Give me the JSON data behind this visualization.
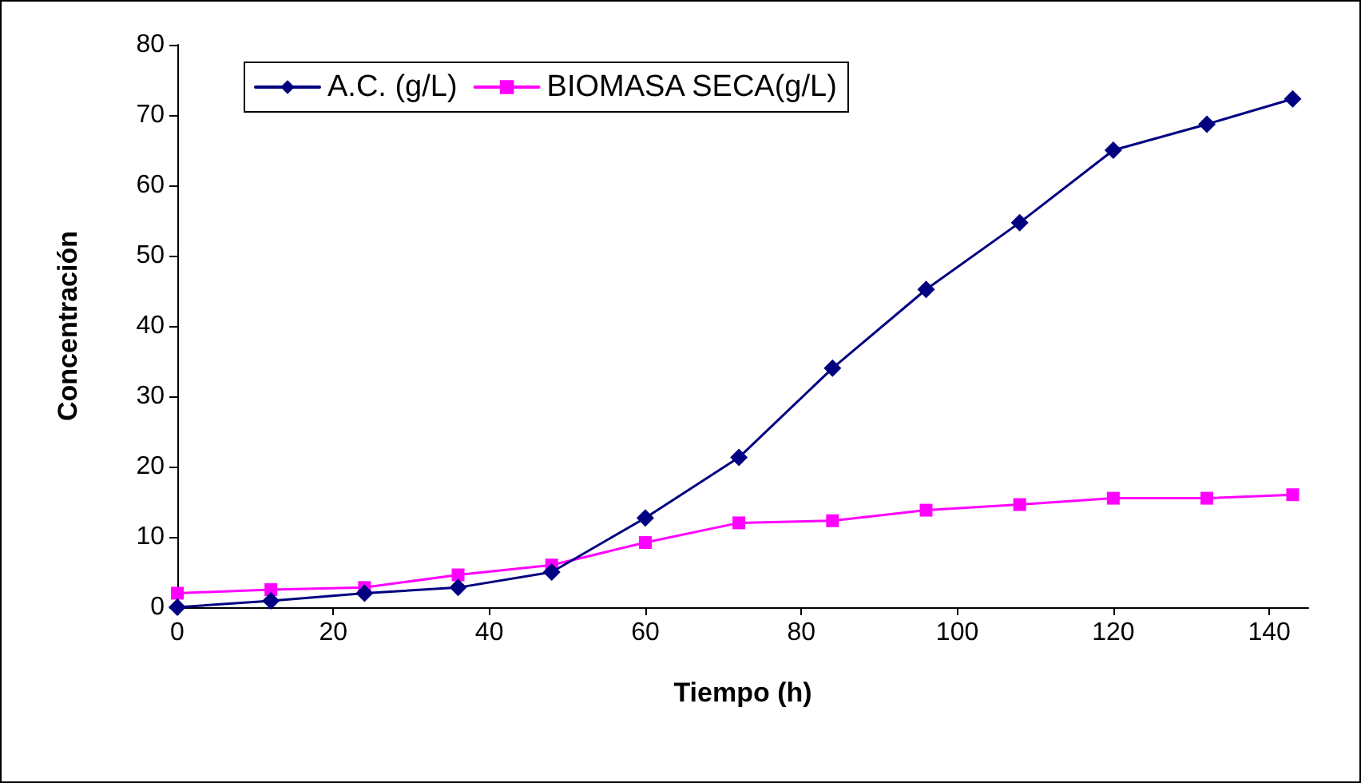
{
  "chart_data": {
    "type": "line",
    "xlabel": "Tiempo (h)",
    "ylabel": "Concentración",
    "x": [
      0,
      12,
      24,
      36,
      48,
      60,
      72,
      84,
      96,
      108,
      120,
      132,
      143
    ],
    "series": [
      {
        "name": "A.C. (g/L)",
        "color": "#000080",
        "marker": "diamond",
        "values": [
          0,
          0.9,
          2,
          2.8,
          5,
          12.7,
          21.3,
          34,
          45.2,
          54.7,
          65,
          68.7,
          72.3
        ]
      },
      {
        "name": "BIOMASA SECA(g/L)",
        "color": "#ff00ff",
        "marker": "square",
        "values": [
          2,
          2.5,
          2.8,
          4.6,
          6,
          9.2,
          12,
          12.3,
          13.8,
          14.6,
          15.5,
          15.5,
          16
        ]
      }
    ],
    "xlim": [
      0,
      145
    ],
    "xticks": [
      0,
      20,
      40,
      60,
      80,
      100,
      120,
      140
    ],
    "ylim": [
      0,
      80
    ],
    "yticks": [
      0,
      10,
      20,
      30,
      40,
      50,
      60,
      70,
      80
    ],
    "grid": false,
    "legend": "top"
  }
}
